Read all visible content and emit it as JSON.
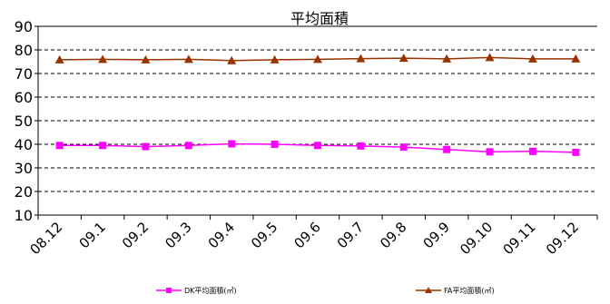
{
  "chart_data": {
    "type": "line",
    "title": "平均面積",
    "xlabel": "",
    "ylabel": "",
    "categories": [
      "08.12",
      "09.1",
      "09.2",
      "09.3",
      "09.4",
      "09.5",
      "09.6",
      "09.7",
      "09.8",
      "09.9",
      "09.10",
      "09.11",
      "09.12"
    ],
    "ylim": [
      10,
      90
    ],
    "yticks": [
      10,
      20,
      30,
      40,
      50,
      60,
      70,
      80,
      90
    ],
    "grid": "horizontal-dashed",
    "legend_position": "bottom",
    "series": [
      {
        "name": "DK平均面積(㎡)",
        "color": "#ff00ff",
        "marker": "square",
        "values": [
          39.5,
          39.5,
          39.0,
          39.5,
          40.2,
          40.0,
          39.5,
          39.3,
          38.8,
          37.8,
          36.8,
          37.0,
          36.6
        ]
      },
      {
        "name": "FA平均面積(㎡)",
        "color": "#993300",
        "marker": "triangle",
        "values": [
          75.8,
          76.0,
          75.8,
          76.0,
          75.5,
          75.8,
          76.0,
          76.3,
          76.5,
          76.2,
          76.8,
          76.2,
          76.2
        ]
      }
    ]
  }
}
